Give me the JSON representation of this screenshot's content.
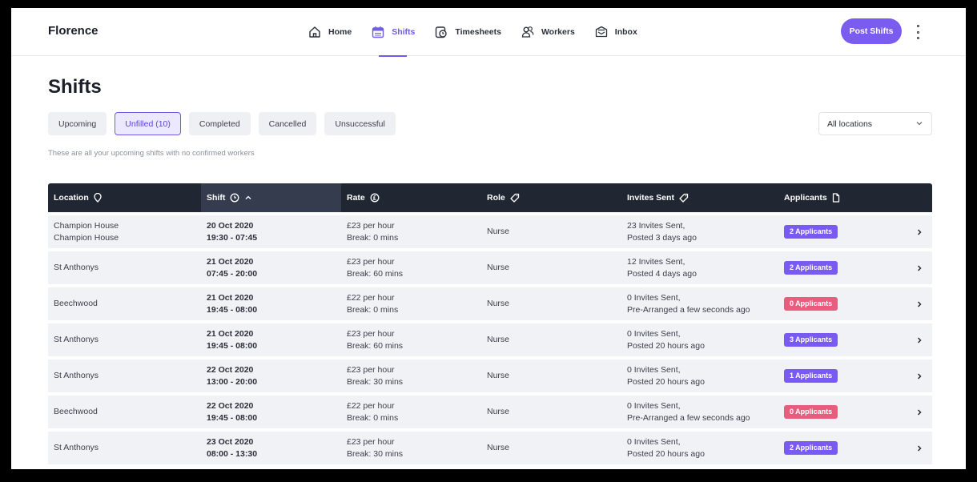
{
  "app": {
    "name": "Florence"
  },
  "nav": [
    {
      "label": "Home",
      "icon": "home-icon",
      "active": false
    },
    {
      "label": "Shifts",
      "icon": "calendar-icon",
      "active": true
    },
    {
      "label": "Timesheets",
      "icon": "clock-icon",
      "active": false
    },
    {
      "label": "Workers",
      "icon": "users-icon",
      "active": false
    },
    {
      "label": "Inbox",
      "icon": "inbox-icon",
      "active": false
    }
  ],
  "header": {
    "post_button": "Post Shifts"
  },
  "page": {
    "title": "Shifts",
    "hint": "These are all your upcoming shifts with no confirmed workers"
  },
  "tabs": [
    {
      "label": "Upcoming",
      "active": false
    },
    {
      "label": "Unfilled (10)",
      "active": true
    },
    {
      "label": "Completed",
      "active": false
    },
    {
      "label": "Cancelled",
      "active": false
    },
    {
      "label": "Unsuccessful",
      "active": false
    }
  ],
  "location_filter": {
    "value": "All locations"
  },
  "table": {
    "columns": [
      {
        "label": "Location",
        "icon": "location-pin-icon"
      },
      {
        "label": "Shift",
        "icon": "clock-icon",
        "sort": "ascending"
      },
      {
        "label": "Rate",
        "icon": "currency-icon"
      },
      {
        "label": "Role",
        "icon": "tag-icon"
      },
      {
        "label": "Invites Sent",
        "icon": "tag-icon"
      },
      {
        "label": "Applicants",
        "icon": "document-icon"
      }
    ],
    "rows": [
      {
        "location": [
          "Champion House",
          "Champion House"
        ],
        "date": "20 Oct 2020",
        "time": "19:30 - 07:45",
        "rate": "£23 per hour",
        "break": "Break: 0 mins",
        "role": "Nurse",
        "invites": "23 Invites Sent,",
        "posted": "Posted 3 days ago",
        "applicants": "2 Applicants",
        "status_color": "purple"
      },
      {
        "location": [
          "St Anthonys"
        ],
        "date": "21 Oct 2020",
        "time": "07:45 - 20:00",
        "rate": "£23 per hour",
        "break": "Break: 60 mins",
        "role": "Nurse",
        "invites": "12 Invites Sent,",
        "posted": "Posted 4 days ago",
        "applicants": "2 Applicants",
        "status_color": "purple"
      },
      {
        "location": [
          "Beechwood"
        ],
        "date": "21 Oct 2020",
        "time": "19:45 - 08:00",
        "rate": "£22 per hour",
        "break": "Break: 0 mins",
        "role": "Nurse",
        "invites": "0 Invites Sent,",
        "posted": "Pre-Arranged a few seconds ago",
        "applicants": "0 Applicants",
        "status_color": "pink"
      },
      {
        "location": [
          "St Anthonys"
        ],
        "date": "21 Oct 2020",
        "time": "19:45 - 08:00",
        "rate": "£23 per hour",
        "break": "Break: 60 mins",
        "role": "Nurse",
        "invites": "0 Invites Sent,",
        "posted": "Posted 20 hours ago",
        "applicants": "3 Applicants",
        "status_color": "purple"
      },
      {
        "location": [
          "St Anthonys"
        ],
        "date": "22 Oct 2020",
        "time": "13:00 - 20:00",
        "rate": "£23 per hour",
        "break": "Break: 30 mins",
        "role": "Nurse",
        "invites": "0 Invites Sent,",
        "posted": "Posted 20 hours ago",
        "applicants": "1 Applicants",
        "status_color": "purple"
      },
      {
        "location": [
          "Beechwood"
        ],
        "date": "22 Oct 2020",
        "time": "19:45 - 08:00",
        "rate": "£22 per hour",
        "break": "Break: 0 mins",
        "role": "Nurse",
        "invites": "0 Invites Sent,",
        "posted": "Pre-Arranged a few seconds ago",
        "applicants": "0 Applicants",
        "status_color": "pink"
      },
      {
        "location": [
          "St Anthonys"
        ],
        "date": "23 Oct 2020",
        "time": "08:00 - 13:30",
        "rate": "£23 per hour",
        "break": "Break: 30 mins",
        "role": "Nurse",
        "invites": "0 Invites Sent,",
        "posted": "Posted 20 hours ago",
        "applicants": "2 Applicants",
        "status_color": "purple"
      }
    ]
  },
  "colors": {
    "accent": "#7b5cf0",
    "header_bg": "#212633",
    "row_bg": "#f1f2f5",
    "pill_purple": "#7a5af5",
    "pill_pink": "#ea5c7e"
  }
}
